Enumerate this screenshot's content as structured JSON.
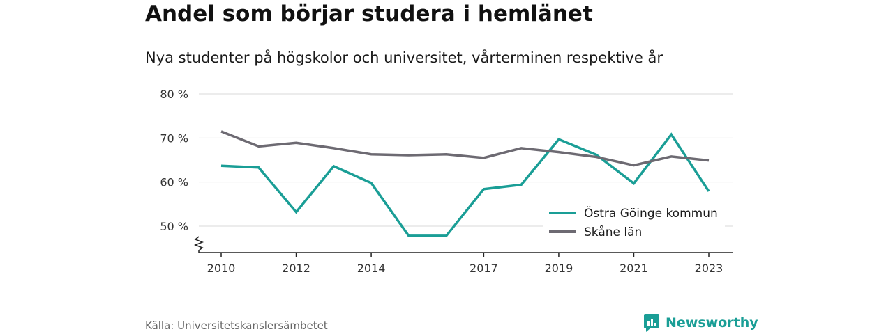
{
  "title": "Andel som börjar studera i hemlänet",
  "subtitle": "Nya studenter på högskolor och universitet, vårterminen respektive år",
  "source": "Källa: Universitetskanslersämbetet",
  "brand": "Newsworthy",
  "colors": {
    "accent": "#1a9e96",
    "secondary": "#6d6a72",
    "grid": "#d9d9d9"
  },
  "chart_data": {
    "type": "line",
    "x": [
      2010,
      2011,
      2012,
      2013,
      2014,
      2015,
      2016,
      2017,
      2018,
      2019,
      2020,
      2021,
      2022,
      2023
    ],
    "x_tick_labels": [
      "2010",
      "2012",
      "2014",
      "2017",
      "2019",
      "2021",
      "2023"
    ],
    "y_tick_labels": [
      "50 %",
      "60 %",
      "70 %",
      "80 %"
    ],
    "y_ticks": [
      50,
      60,
      70,
      80
    ],
    "ylim": [
      44,
      80
    ],
    "y_axis_break": true,
    "grid": true,
    "legend_position": "bottom-right",
    "series": [
      {
        "name": "Östra Göinge kommun",
        "color": "#1a9e96",
        "values": [
          63.7,
          63.3,
          53.2,
          63.6,
          59.8,
          47.8,
          47.8,
          58.4,
          59.4,
          69.7,
          66.2,
          59.7,
          70.8,
          57.9
        ]
      },
      {
        "name": "Skåne län",
        "color": "#6d6a72",
        "values": [
          71.5,
          68.1,
          68.9,
          67.7,
          66.3,
          66.1,
          66.3,
          65.5,
          67.7,
          66.8,
          65.7,
          63.8,
          65.8,
          64.9
        ]
      }
    ]
  }
}
